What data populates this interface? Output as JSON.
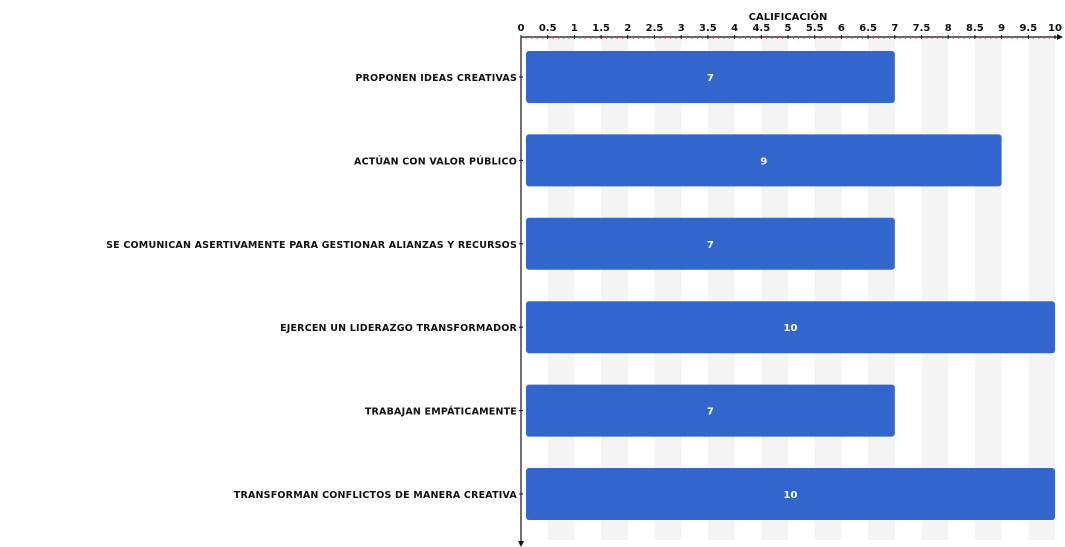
{
  "chart_data": {
    "type": "bar",
    "orientation": "horizontal",
    "xlabel": "CALIFICACIÓN",
    "xlim": [
      0,
      10
    ],
    "x_ticks": [
      "0",
      "0.5",
      "1",
      "1.5",
      "2",
      "2.5",
      "3",
      "3.5",
      "4",
      "4.5",
      "5",
      "5.5",
      "6",
      "6.5",
      "7",
      "7.5",
      "8",
      "8.5",
      "9",
      "9.5",
      "10"
    ],
    "x_axis_position": "top",
    "grid": true,
    "categories": [
      "PROPONEN IDEAS CREATIVAS",
      "ACTÚAN CON VALOR PÚBLICO",
      "SE COMUNICAN ASERTIVAMENTE PARA GESTIONAR ALIANZAS Y RECURSOS",
      "EJERCEN UN LIDERAZGO TRANSFORMADOR",
      "TRABAJAN EMPÁTICAMENTE",
      "TRANSFORMAN CONFLICTOS DE MANERA CREATIVA"
    ],
    "values": [
      7,
      9,
      7,
      10,
      7,
      10
    ],
    "data_labels": [
      "7",
      "9",
      "7",
      "10",
      "7",
      "10"
    ],
    "colors": {
      "bar": "#3366cc",
      "grid_band": "#f4f4f4",
      "axis": "#111111",
      "tick_minor": "#d04040"
    }
  }
}
